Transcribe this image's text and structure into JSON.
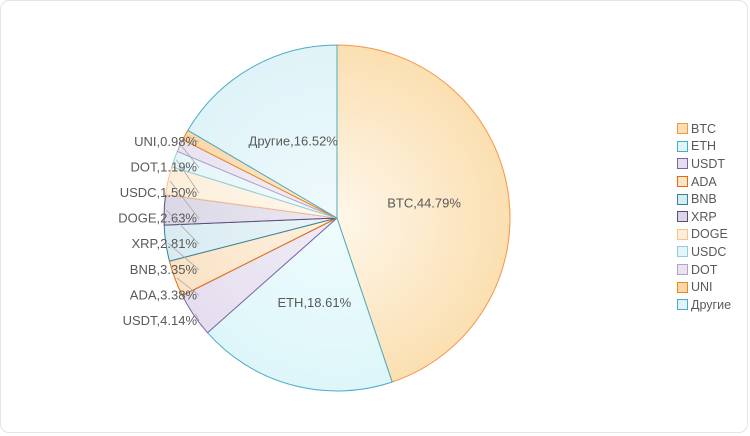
{
  "chart_data": {
    "type": "pie",
    "title": "",
    "legend_position": "right",
    "start_angle_deg": 0,
    "direction": "clockwise",
    "series": [
      {
        "name": "BTC",
        "value": 44.79,
        "display": "BTC,44.79%",
        "label_placement": "inside",
        "fill": "#FBDFB1",
        "inner": "#FEF7EA",
        "stroke": "#F79646"
      },
      {
        "name": "ETH",
        "value": 18.61,
        "display": "ETH,18.61%",
        "label_placement": "inside",
        "fill": "#DDF6FA",
        "inner": "#EFFCFD",
        "stroke": "#4BACC6"
      },
      {
        "name": "USDT",
        "value": 4.14,
        "display": "USDT,4.14%",
        "label_placement": "outside",
        "fill": "#E5DEEF",
        "inner": "#F0ECF6",
        "stroke": "#8064A2"
      },
      {
        "name": "ADA",
        "value": 3.38,
        "display": "ADA,3.38%",
        "label_placement": "outside",
        "fill": "#FAE3C6",
        "inner": "#FDF1E2",
        "stroke": "#E46C0A"
      },
      {
        "name": "BNB",
        "value": 3.35,
        "display": "BNB,3.35%",
        "label_placement": "outside",
        "fill": "#D9EBF2",
        "inner": "#EAF5F8",
        "stroke": "#31859C"
      },
      {
        "name": "XRP",
        "value": 2.81,
        "display": "XRP,2.81%",
        "label_placement": "outside",
        "fill": "#DBD7E6",
        "inner": "#ECEAF2",
        "stroke": "#604A7B"
      },
      {
        "name": "DOGE",
        "value": 2.63,
        "display": "DOGE,2.63%",
        "label_placement": "outside",
        "fill": "#FCEFDA",
        "inner": "#FEF8EE",
        "stroke": "#FAC090"
      },
      {
        "name": "USDC",
        "value": 1.5,
        "display": "USDC,1.50%",
        "label_placement": "outside",
        "fill": "#E4F5F9",
        "inner": "#F2FBFC",
        "stroke": "#92CDDC"
      },
      {
        "name": "DOT",
        "value": 1.19,
        "display": "DOT,1.19%",
        "label_placement": "outside",
        "fill": "#E8E2F1",
        "inner": "#F3F0F8",
        "stroke": "#B3A2C7"
      },
      {
        "name": "UNI",
        "value": 0.98,
        "display": "UNI,0.98%",
        "label_placement": "outside",
        "fill": "#FAD7A7",
        "inner": "#FDEBD3",
        "stroke": "#E98921"
      },
      {
        "name": "Другие",
        "value": 16.52,
        "display": "Другие,16.52%",
        "label_placement": "inside",
        "fill": "#DFF3F8",
        "inner": "#EFFAFC",
        "stroke": "#4BACC6"
      }
    ],
    "legend_items": [
      "BTC",
      "ETH",
      "USDT",
      "ADA",
      "BNB",
      "XRP",
      "DOGE",
      "USDC",
      "DOT",
      "UNI",
      "Другие"
    ],
    "colors": {
      "label_text": "#595959",
      "legend_text": "#595959",
      "leader_line": "#A9A9A9",
      "chart_border": "#E4E4E4",
      "background": "#FFFFFF"
    }
  }
}
